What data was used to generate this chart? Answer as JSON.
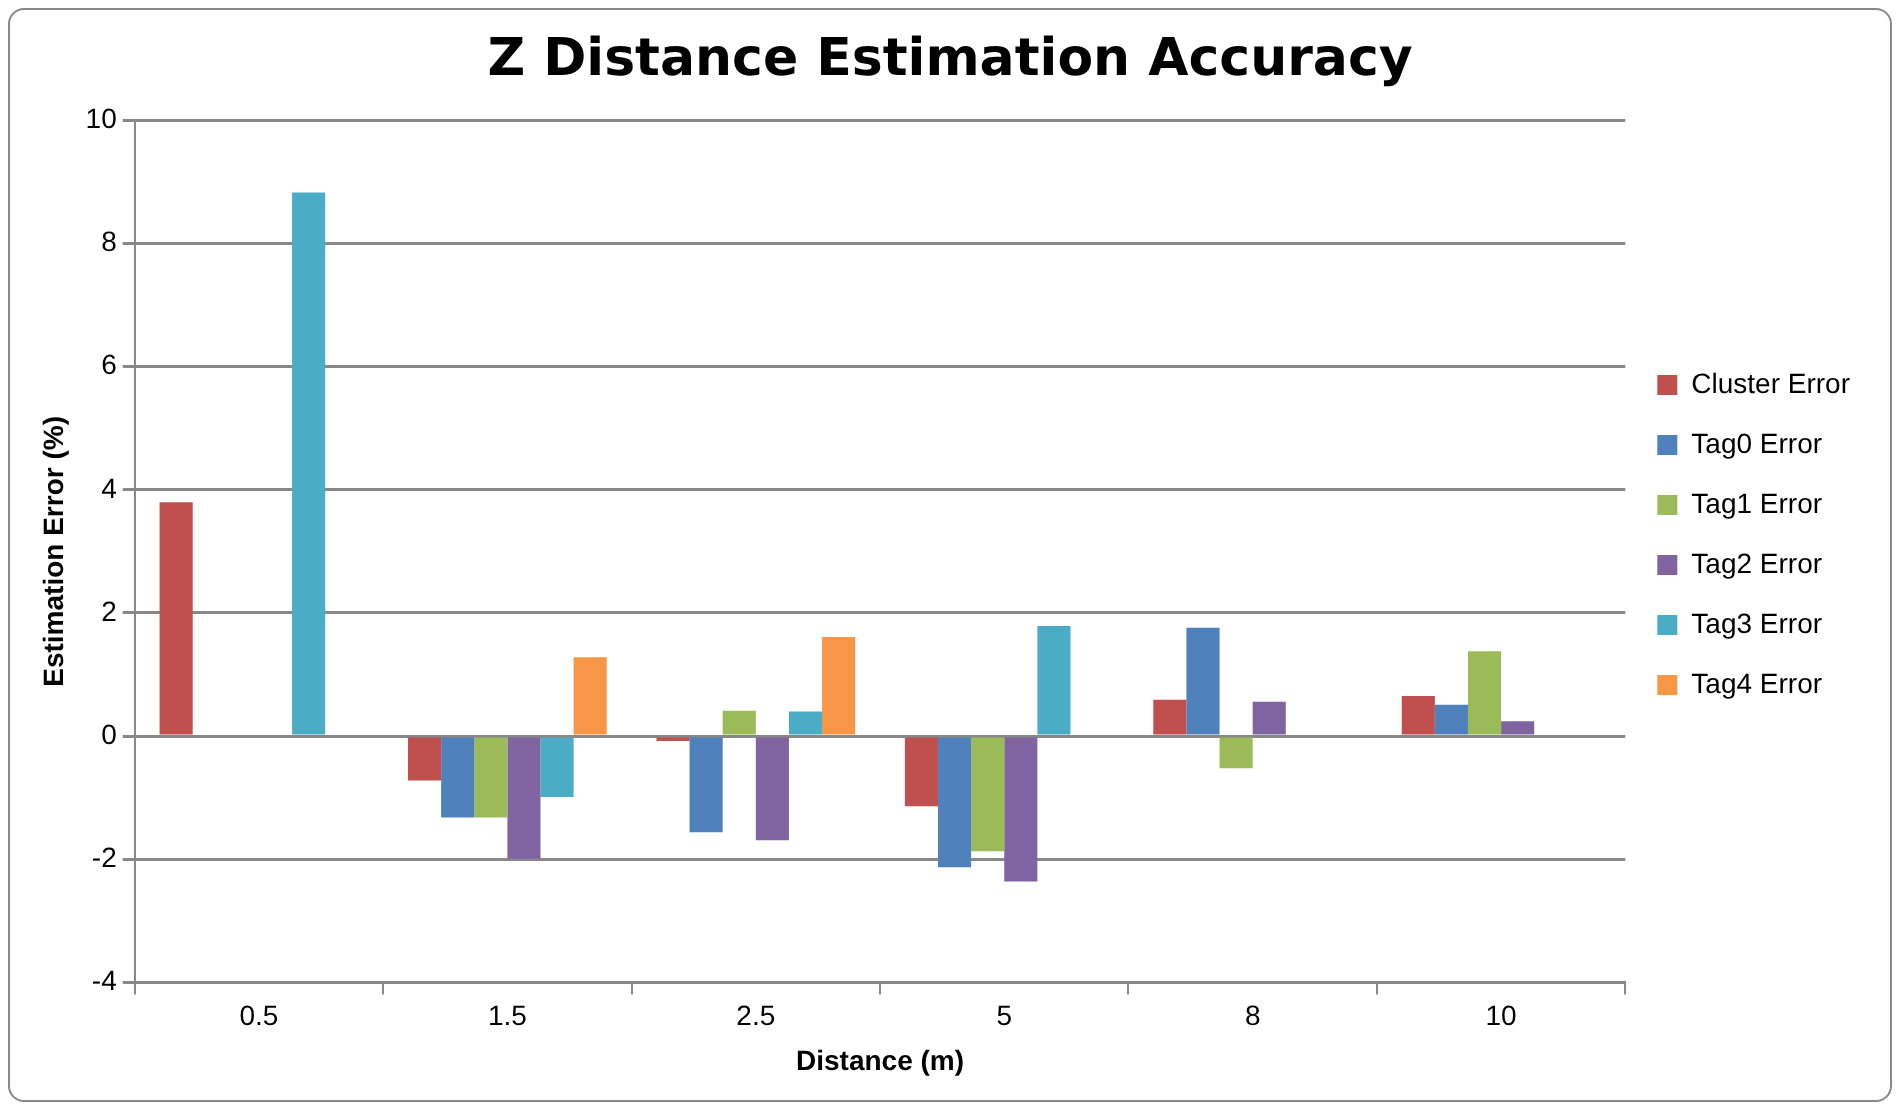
{
  "chart_data": {
    "type": "bar",
    "title": "Z Distance Estimation Accuracy",
    "xlabel": "Distance (m)",
    "ylabel": "Estimation Error (%)",
    "categories": [
      "0.5",
      "1.5",
      "2.5",
      "5",
      "8",
      "10"
    ],
    "series": [
      {
        "name": "Cluster Error",
        "color": "#c0504d",
        "values": [
          3.8,
          -0.72,
          -0.08,
          -1.14,
          0.59,
          0.65
        ]
      },
      {
        "name": "Tag0 Error",
        "color": "#4f81bd",
        "values": [
          null,
          -1.32,
          -1.56,
          -2.13,
          1.76,
          0.51
        ]
      },
      {
        "name": "Tag1 Error",
        "color": "#9bbb59",
        "values": [
          null,
          -1.32,
          0.41,
          -1.87,
          -0.52,
          1.38
        ]
      },
      {
        "name": "Tag2 Error",
        "color": "#8064a2",
        "values": [
          null,
          -1.99,
          -1.69,
          -2.36,
          0.56,
          0.24
        ]
      },
      {
        "name": "Tag3 Error",
        "color": "#4bacc6",
        "values": [
          8.83,
          -0.99,
          0.4,
          1.79,
          null,
          null
        ]
      },
      {
        "name": "Tag4 Error",
        "color": "#f79646",
        "values": [
          null,
          1.28,
          1.61,
          null,
          null,
          null
        ]
      }
    ],
    "ylim": [
      -4,
      10
    ],
    "yticks": [
      -4,
      -2,
      0,
      2,
      4,
      6,
      8,
      10
    ],
    "grid": "y",
    "legend": "right"
  }
}
